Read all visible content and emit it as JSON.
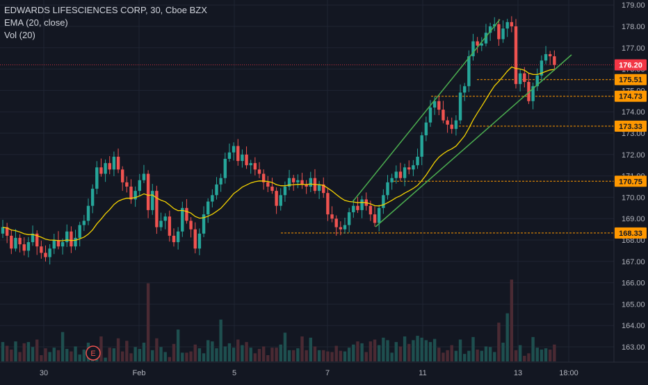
{
  "legend": {
    "symbol": "EDWARDS LIFESCIENCES CORP, 30, Cboe BZX",
    "ema": "EMA (20, close)",
    "vol": "Vol (20)"
  },
  "colors": {
    "background": "#131722",
    "grid": "#1f2433",
    "up": "#26a69a",
    "down": "#ef5350",
    "up_volume": "#1e4f4f",
    "down_volume": "#4a2a33",
    "ema": "#f5d300",
    "channel": "#4caf50",
    "level": "#ff9800",
    "last_price": "#f23645",
    "axis_text": "#b2b5be"
  },
  "event_badge": {
    "label": "E"
  },
  "chart_data": {
    "type": "candlestick",
    "title": "EDWARDS LIFESCIENCES CORP, 30, Cboe BZX",
    "xlabel": "",
    "ylabel": "",
    "ylim": [
      162.5,
      179.2
    ],
    "grid": true,
    "x_ticks": [
      "30",
      "Feb",
      "5",
      "7",
      "11",
      "13",
      "18:00"
    ],
    "y_ticks": [
      "163.00",
      "164.00",
      "165.00",
      "166.00",
      "167.00",
      "168.00",
      "169.00",
      "170.00",
      "171.00",
      "172.00",
      "173.00",
      "174.00",
      "175.00",
      "176.00",
      "177.00",
      "178.00",
      "179.00"
    ],
    "last_price": "176.20",
    "price_levels": [
      {
        "label": "175.51",
        "value": 175.51
      },
      {
        "label": "174.73",
        "value": 174.73
      },
      {
        "label": "173.33",
        "value": 173.33
      },
      {
        "label": "170.75",
        "value": 170.75
      },
      {
        "label": "168.33",
        "value": 168.33
      }
    ],
    "closes": [
      168.6,
      168.2,
      167.6,
      168.1,
      167.8,
      167.5,
      167.9,
      168.3,
      167.7,
      167.4,
      167.2,
      167.6,
      168.0,
      167.7,
      167.9,
      168.4,
      167.7,
      168.1,
      168.7,
      168.9,
      169.6,
      170.4,
      171.4,
      171.1,
      171.6,
      171.3,
      171.9,
      171.3,
      170.7,
      170.5,
      169.9,
      170.3,
      170.8,
      171.1,
      169.4,
      170.3,
      168.6,
      168.9,
      169.1,
      168.2,
      167.9,
      168.4,
      169.5,
      168.9,
      168.5,
      167.6,
      168.3,
      169.2,
      169.8,
      170.1,
      170.6,
      170.9,
      171.8,
      172.1,
      172.4,
      171.7,
      172.0,
      171.5,
      171.6,
      171.3,
      171.1,
      170.7,
      170.5,
      170.3,
      169.6,
      170.1,
      170.5,
      170.9,
      170.7,
      170.8,
      170.6,
      170.5,
      170.9,
      170.3,
      170.6,
      170.2,
      169.2,
      169.0,
      168.6,
      168.5,
      168.7,
      169.3,
      169.6,
      169.4,
      169.9,
      169.6,
      169.2,
      168.8,
      169.5,
      170.1,
      170.7,
      170.9,
      171.2,
      170.9,
      171.4,
      171.3,
      171.5,
      171.9,
      172.9,
      173.5,
      174.2,
      174.5,
      174.1,
      173.6,
      173.4,
      173.2,
      173.6,
      174.9,
      175.2,
      176.6,
      177.3,
      177.1,
      177.2,
      177.7,
      178.0,
      178.1,
      177.4,
      177.9,
      178.2,
      178.0,
      175.3,
      175.8,
      175.4,
      174.5,
      175.2,
      175.7,
      176.4,
      176.7,
      176.6,
      176.2
    ],
    "volume": [
      31,
      25,
      19,
      32,
      15,
      29,
      31,
      23,
      35,
      10,
      21,
      15,
      22,
      18,
      47,
      20,
      16,
      24,
      11,
      19,
      30,
      20,
      19,
      40,
      6,
      22,
      21,
      37,
      16,
      33,
      13,
      23,
      20,
      30,
      125,
      18,
      37,
      23,
      15,
      7,
      28,
      51,
      14,
      14,
      16,
      27,
      21,
      13,
      34,
      32,
      21,
      67,
      24,
      29,
      22,
      35,
      26,
      31,
      22,
      13,
      20,
      24,
      10,
      22,
      22,
      27,
      46,
      18,
      18,
      21,
      40,
      18,
      38,
      24,
      18,
      18,
      16,
      15,
      25,
      17,
      16,
      22,
      27,
      32,
      29,
      15,
      32,
      35,
      26,
      38,
      34,
      14,
      31,
      24,
      40,
      28,
      34,
      41,
      38,
      34,
      31,
      36,
      22,
      14,
      18,
      26,
      17,
      35,
      12,
      17,
      39,
      19,
      17,
      24,
      23,
      15,
      62,
      30,
      77,
      131,
      18,
      26,
      9,
      13,
      39,
      22,
      19,
      21,
      19,
      27
    ]
  }
}
